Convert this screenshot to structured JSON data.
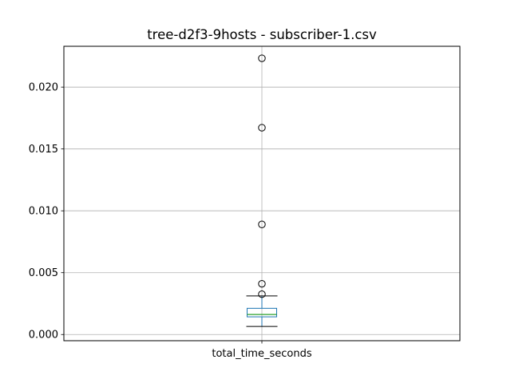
{
  "chart_data": {
    "type": "box",
    "title": "tree-d2f3-9hosts - subscriber-1.csv",
    "xlabel": "",
    "ylabel": "",
    "categories": [
      "total_time_seconds"
    ],
    "ylim": [
      -0.0005,
      0.0233
    ],
    "yticks": [
      0.0,
      0.005,
      0.01,
      0.015,
      0.02
    ],
    "ytick_labels": [
      "0.000",
      "0.005",
      "0.010",
      "0.015",
      "0.020"
    ],
    "grid": true,
    "boxes": [
      {
        "name": "total_time_seconds",
        "whisker_low": 0.00065,
        "q1": 0.00143,
        "median": 0.00162,
        "q3": 0.00212,
        "whisker_high": 0.00312,
        "outliers": [
          0.02233,
          0.01672,
          0.0089,
          0.0041,
          0.00326
        ]
      }
    ],
    "colors": {
      "box": "#1f77b4",
      "median": "#2ca02c",
      "whisker": "#1f77b4",
      "cap": "#000000",
      "outlier": "#000000",
      "grid": "#b0b0b0"
    }
  }
}
